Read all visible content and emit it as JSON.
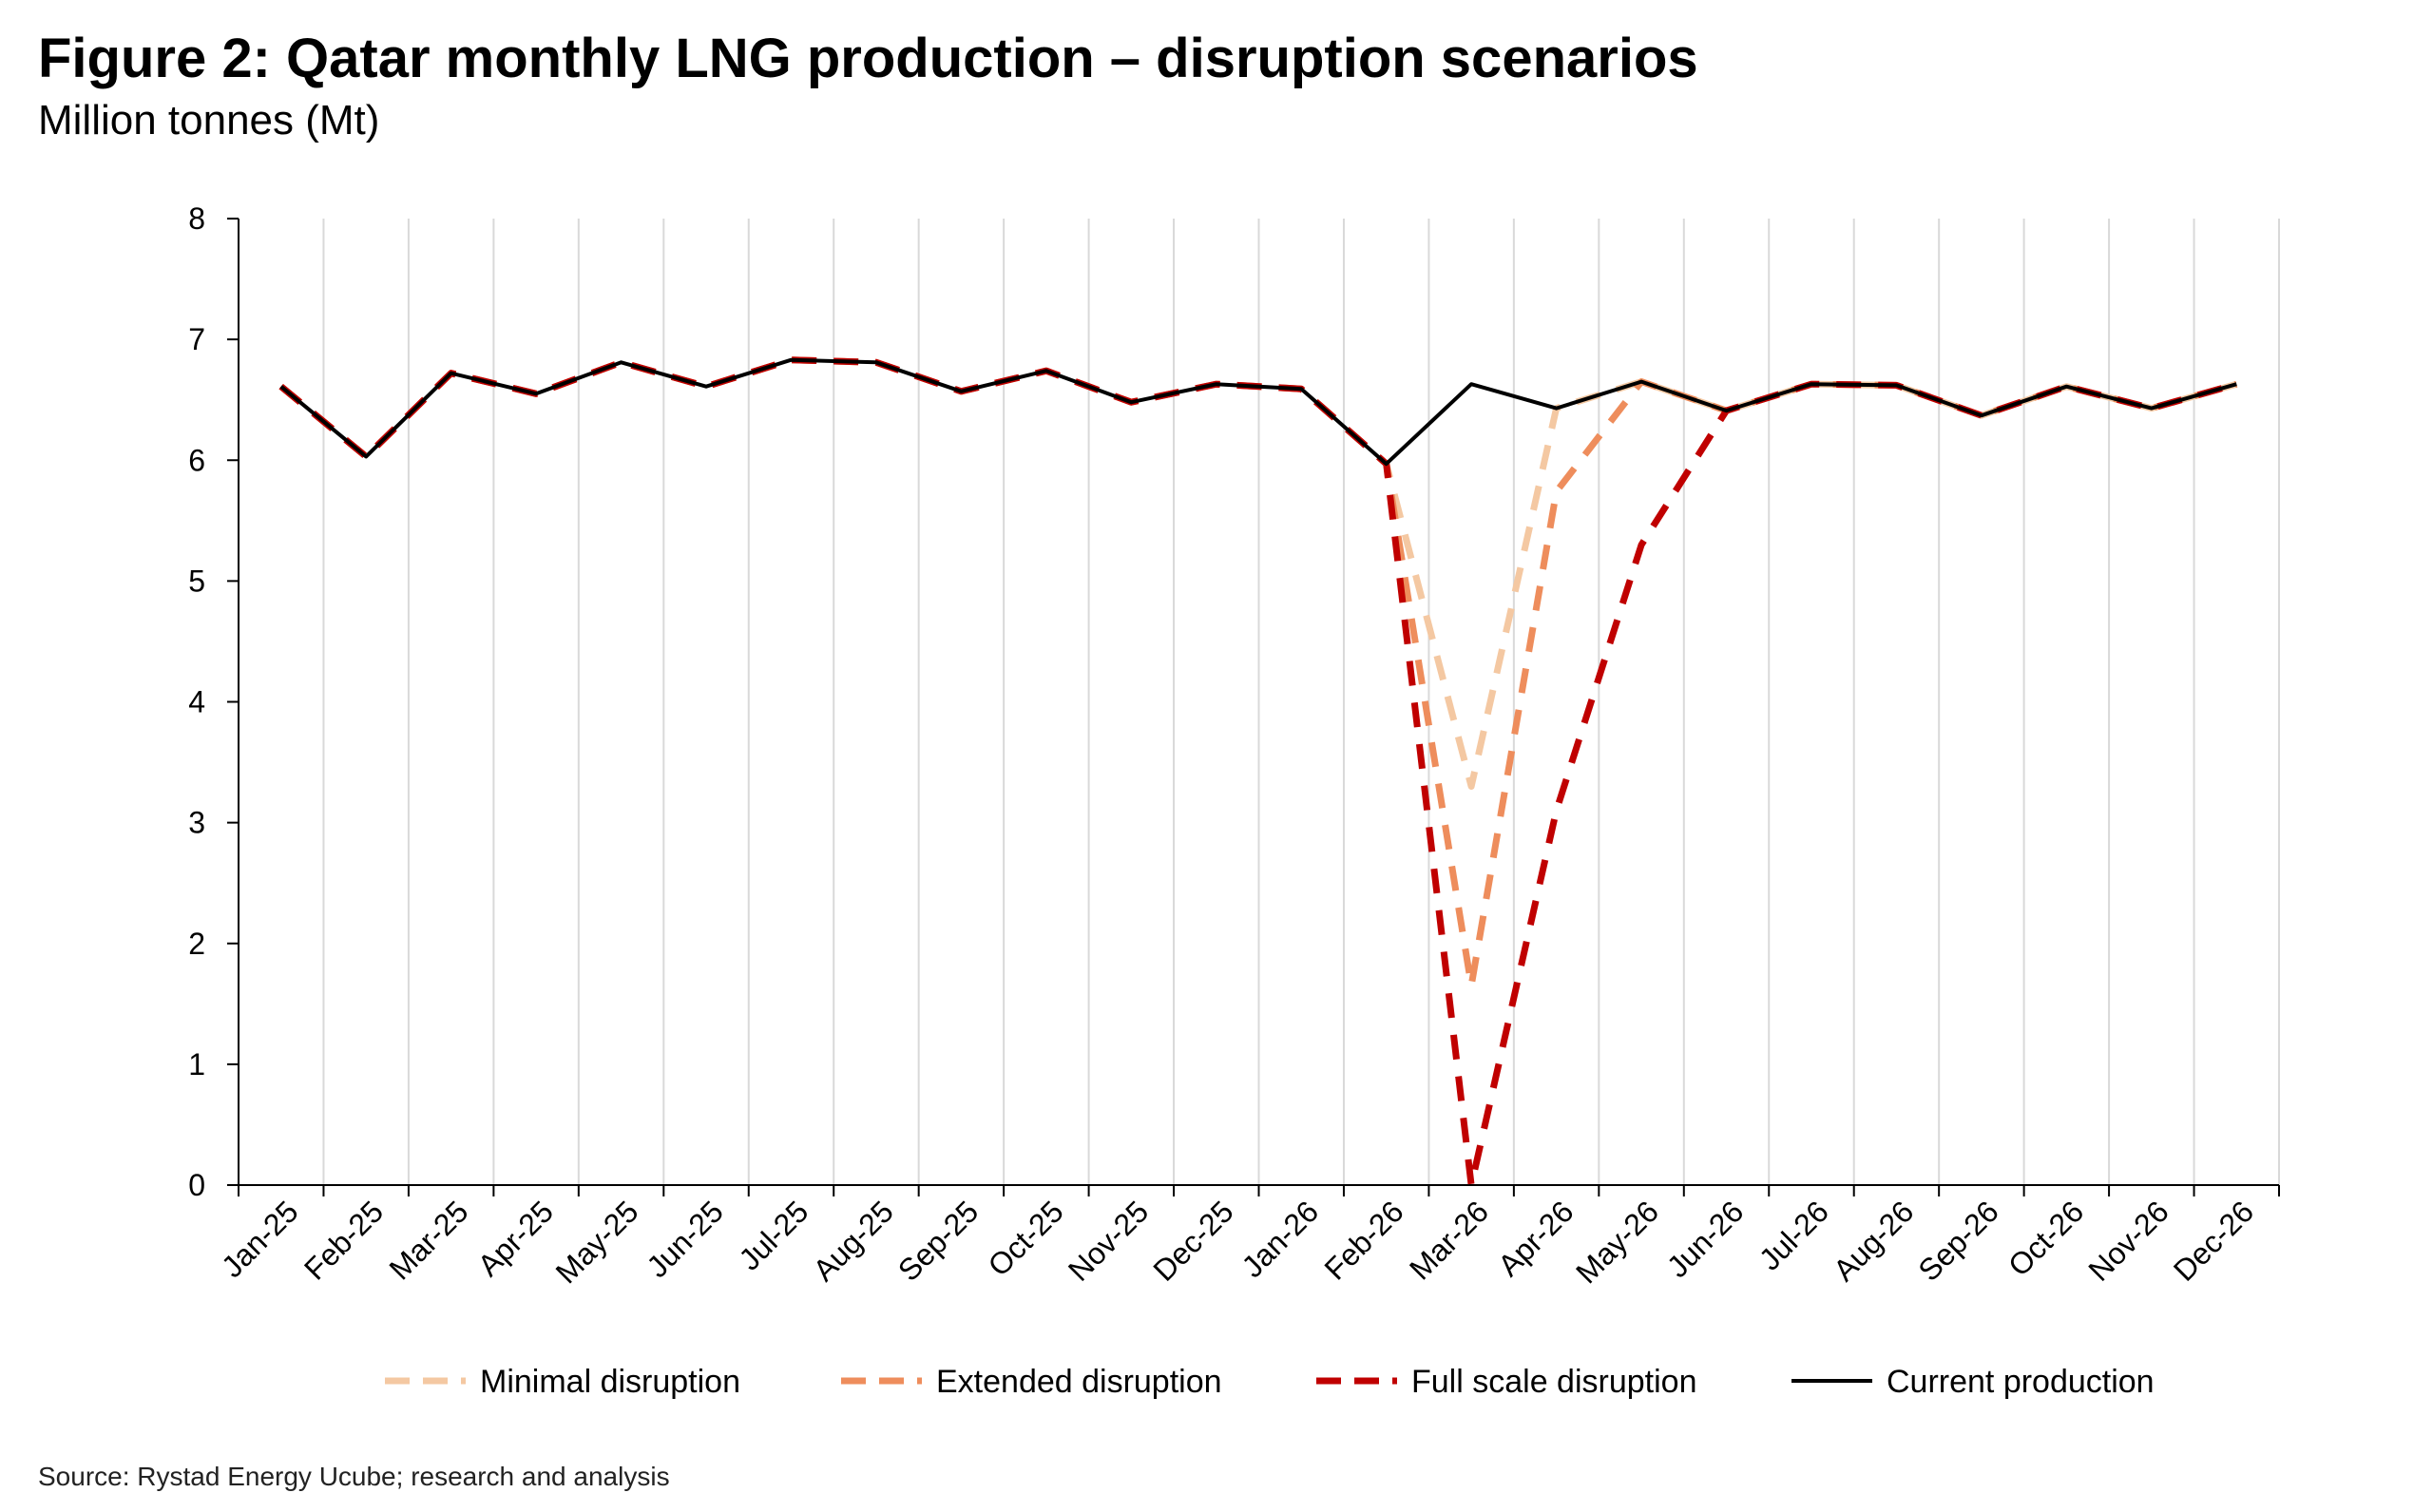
{
  "chart_data": {
    "type": "line",
    "title": "Figure 2: Qatar monthly LNG production – disruption scenarios",
    "subtitle": "Million tonnes (Mt)",
    "source": "Source: Rystad Energy Ucube; research and analysis",
    "xlabel": "",
    "ylabel": "",
    "ylim": [
      0,
      8
    ],
    "yticks": [
      0,
      1,
      2,
      3,
      4,
      5,
      6,
      7,
      8
    ],
    "grid": "vertical",
    "legend_position": "bottom",
    "categories": [
      "Jan-25",
      "Feb-25",
      "Mar-25",
      "Apr-25",
      "May-25",
      "Jun-25",
      "Jul-25",
      "Aug-25",
      "Sep-25",
      "Oct-25",
      "Nov-25",
      "Dec-25",
      "Jan-26",
      "Feb-26",
      "Mar-26",
      "Apr-26",
      "May-26",
      "Jun-26",
      "Jul-26",
      "Aug-26",
      "Sep-26",
      "Oct-26",
      "Nov-26",
      "Dec-26"
    ],
    "series": [
      {
        "name": "Minimal disruption",
        "color": "#f4c8a2",
        "dash": true,
        "values": [
          6.61,
          6.03,
          6.72,
          6.55,
          6.81,
          6.61,
          6.83,
          6.81,
          6.57,
          6.74,
          6.48,
          6.63,
          6.59,
          5.97,
          3.3,
          6.43,
          6.65,
          6.41,
          6.63,
          6.62,
          6.37,
          6.61,
          6.43,
          6.63
        ]
      },
      {
        "name": "Extended disruption",
        "color": "#ee8d5c",
        "dash": true,
        "values": [
          6.61,
          6.03,
          6.72,
          6.55,
          6.81,
          6.61,
          6.83,
          6.81,
          6.57,
          6.74,
          6.48,
          6.63,
          6.59,
          5.97,
          1.65,
          5.74,
          6.65,
          6.41,
          6.63,
          6.62,
          6.37,
          6.61,
          6.43,
          6.63
        ]
      },
      {
        "name": "Full scale disruption",
        "color": "#c00000",
        "dash": true,
        "values": [
          6.61,
          6.03,
          6.72,
          6.55,
          6.81,
          6.61,
          6.83,
          6.81,
          6.57,
          6.74,
          6.48,
          6.63,
          6.59,
          5.97,
          0.0,
          3.1,
          5.3,
          6.41,
          6.63,
          6.62,
          6.37,
          6.61,
          6.43,
          6.63
        ]
      },
      {
        "name": "Current production",
        "color": "#000000",
        "dash": false,
        "values": [
          6.61,
          6.03,
          6.72,
          6.55,
          6.81,
          6.61,
          6.83,
          6.81,
          6.57,
          6.74,
          6.48,
          6.63,
          6.59,
          5.97,
          6.63,
          6.43,
          6.65,
          6.41,
          6.63,
          6.62,
          6.37,
          6.61,
          6.43,
          6.63
        ]
      }
    ]
  }
}
